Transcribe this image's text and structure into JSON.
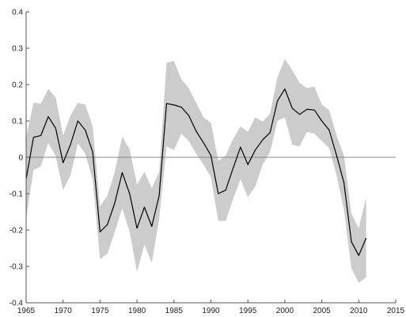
{
  "chart_data": {
    "type": "line",
    "title": "",
    "xlabel": "",
    "ylabel": "",
    "xlim": [
      1965,
      2015
    ],
    "ylim": [
      -0.4,
      0.4
    ],
    "xticks": [
      1965,
      1970,
      1975,
      1980,
      1985,
      1990,
      1995,
      2000,
      2005,
      2010,
      2015
    ],
    "yticks": [
      -0.4,
      -0.3,
      -0.2,
      -0.1,
      0,
      0.1,
      0.2,
      0.3,
      0.4
    ],
    "grid": false,
    "zero_line": true,
    "colors": {
      "line": "#000000",
      "band": "#cccccc",
      "zero_line": "#888888",
      "axis": "#555555"
    },
    "series": [
      {
        "x": [
          1965,
          1966,
          1967,
          1968,
          1969,
          1970,
          1971,
          1972,
          1973,
          1974,
          1975,
          1976,
          1977,
          1978,
          1979,
          1980,
          1981,
          1982,
          1983,
          1984,
          1985,
          1986,
          1987,
          1988,
          1989,
          1990,
          1991,
          1992,
          1993,
          1994,
          1995,
          1996,
          1997,
          1998,
          1999,
          2000,
          2001,
          2002,
          2003,
          2004,
          2005,
          2006,
          2007,
          2008,
          2009,
          2010,
          2011
        ],
        "y": [
          -0.06,
          0.055,
          0.06,
          0.112,
          0.08,
          -0.015,
          0.035,
          0.1,
          0.075,
          0.015,
          -0.205,
          -0.185,
          -0.125,
          -0.042,
          -0.1,
          -0.195,
          -0.137,
          -0.19,
          -0.105,
          0.148,
          0.144,
          0.138,
          0.115,
          0.072,
          0.04,
          0.005,
          -0.1,
          -0.09,
          -0.03,
          0.028,
          -0.02,
          0.02,
          0.048,
          0.068,
          0.155,
          0.188,
          0.135,
          0.118,
          0.132,
          0.13,
          0.1,
          0.075,
          0.005,
          -0.07,
          -0.232,
          -0.27,
          -0.222
        ],
        "lower": [
          -0.17,
          -0.035,
          -0.025,
          0.04,
          0.003,
          -0.09,
          -0.05,
          0.038,
          0.01,
          -0.06,
          -0.28,
          -0.265,
          -0.205,
          -0.14,
          -0.205,
          -0.315,
          -0.24,
          -0.29,
          -0.17,
          0.03,
          0.02,
          0.065,
          0.045,
          0.01,
          -0.02,
          -0.055,
          -0.175,
          -0.175,
          -0.115,
          -0.06,
          -0.11,
          -0.08,
          -0.02,
          0.015,
          0.1,
          0.11,
          0.035,
          0.03,
          0.07,
          0.065,
          0.045,
          0.025,
          -0.05,
          -0.145,
          -0.305,
          -0.345,
          -0.33
        ],
        "upper": [
          0.055,
          0.15,
          0.148,
          0.188,
          0.165,
          0.06,
          0.115,
          0.15,
          0.145,
          0.085,
          -0.135,
          -0.105,
          -0.04,
          0.057,
          0.022,
          -0.075,
          -0.04,
          -0.085,
          -0.04,
          0.26,
          0.265,
          0.215,
          0.19,
          0.15,
          0.11,
          0.095,
          -0.01,
          0.005,
          0.05,
          0.085,
          0.07,
          0.11,
          0.098,
          0.12,
          0.22,
          0.27,
          0.24,
          0.205,
          0.19,
          0.195,
          0.145,
          0.13,
          0.06,
          0.005,
          -0.155,
          -0.195,
          -0.11
        ]
      }
    ]
  }
}
